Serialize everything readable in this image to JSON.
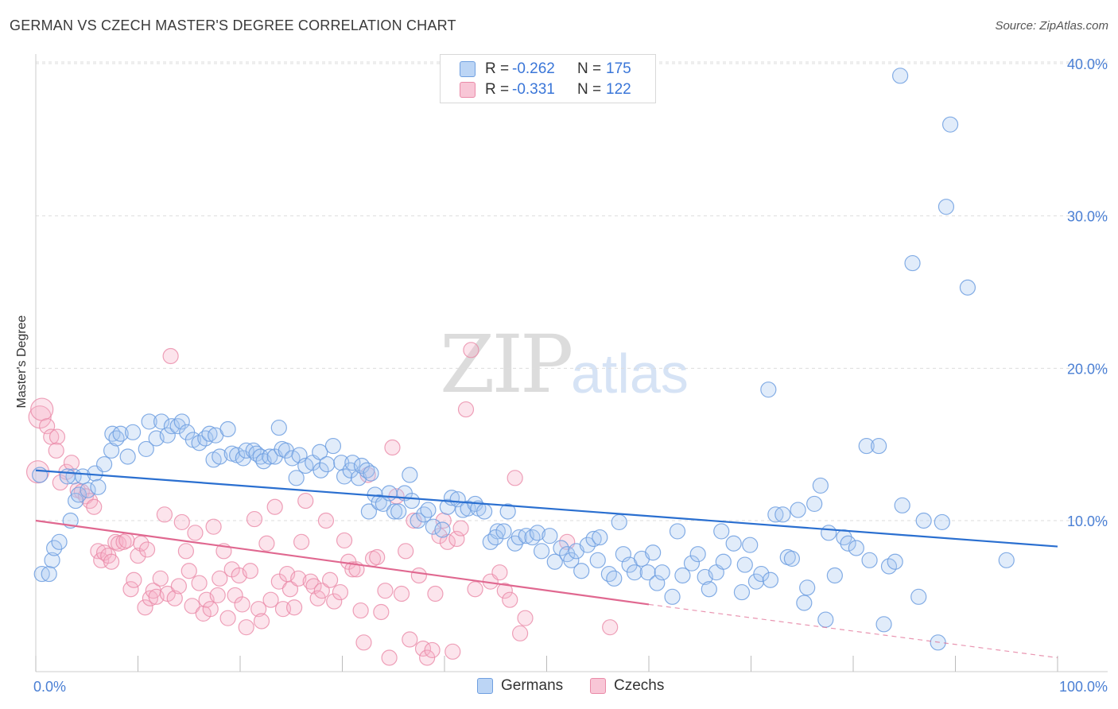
{
  "header": {
    "title": "GERMAN VS CZECH MASTER'S DEGREE CORRELATION CHART",
    "source": "Source: ZipAtlas.com"
  },
  "watermark": {
    "zip": "ZIP",
    "atlas": "atlas"
  },
  "legend": {
    "rows": [
      {
        "r_label": "R =",
        "r_value": "-0.262",
        "n_label": "N =",
        "n_value": "175"
      },
      {
        "r_label": "R =",
        "r_value": "-0.331",
        "n_label": "N =",
        "n_value": "122"
      }
    ]
  },
  "bottom_legend": {
    "germans": "Germans",
    "czechs": "Czechs"
  },
  "colors": {
    "germans_fill": "#a9c8f0",
    "germans_stroke": "#6f9fe0",
    "germans_line": "#2a6fd0",
    "czechs_fill": "#f5b3c8",
    "czechs_stroke": "#ea8aa8",
    "czechs_line": "#e06890",
    "tick_text": "#4a7fd4",
    "grid": "#dddddd"
  },
  "chart_data": {
    "type": "scatter",
    "title": "GERMAN VS CZECH MASTER'S DEGREE CORRELATION CHART",
    "xlabel": "",
    "ylabel": "Master's Degree",
    "xlim": [
      0,
      100
    ],
    "ylim": [
      0,
      42
    ],
    "x_tick_labels": [
      "0.0%",
      "100.0%"
    ],
    "y_ticks": [
      10,
      20,
      30,
      40
    ],
    "y_tick_labels": [
      "10.0%",
      "20.0%",
      "30.0%",
      "40.0%"
    ],
    "grid": true,
    "legend_position": "top-center",
    "series": [
      {
        "name": "Germans",
        "R": -0.262,
        "N": 175,
        "trend": {
          "x": [
            0,
            100
          ],
          "y": [
            13.3,
            8.3
          ],
          "style": "solid"
        },
        "points": [
          [
            0.6,
            6.5
          ],
          [
            1.3,
            6.5
          ],
          [
            1.6,
            7.4
          ],
          [
            1.8,
            8.2
          ],
          [
            2.3,
            8.6
          ],
          [
            3.4,
            10.0
          ],
          [
            3.7,
            12.9
          ],
          [
            3.9,
            11.3
          ],
          [
            4.2,
            11.7
          ],
          [
            5.1,
            12.0
          ],
          [
            4.6,
            12.9
          ],
          [
            5.8,
            13.1
          ],
          [
            6.1,
            12.2
          ],
          [
            6.7,
            13.7
          ],
          [
            7.4,
            14.6
          ],
          [
            7.5,
            15.7
          ],
          [
            7.9,
            15.4
          ],
          [
            8.3,
            15.7
          ],
          [
            9.0,
            14.2
          ],
          [
            9.5,
            15.8
          ],
          [
            10.8,
            14.7
          ],
          [
            11.1,
            16.5
          ],
          [
            11.8,
            15.4
          ],
          [
            12.3,
            16.5
          ],
          [
            12.9,
            15.6
          ],
          [
            13.3,
            16.2
          ],
          [
            13.9,
            16.2
          ],
          [
            14.3,
            16.5
          ],
          [
            14.8,
            15.8
          ],
          [
            15.4,
            15.3
          ],
          [
            16.0,
            15.1
          ],
          [
            16.6,
            15.4
          ],
          [
            17.0,
            15.7
          ],
          [
            17.6,
            15.6
          ],
          [
            17.4,
            14.0
          ],
          [
            18.0,
            14.2
          ],
          [
            18.8,
            16.0
          ],
          [
            19.2,
            14.4
          ],
          [
            19.7,
            14.3
          ],
          [
            20.3,
            14.1
          ],
          [
            20.6,
            14.6
          ],
          [
            21.3,
            14.6
          ],
          [
            21.6,
            14.4
          ],
          [
            22.0,
            14.2
          ],
          [
            22.3,
            13.9
          ],
          [
            22.9,
            14.2
          ],
          [
            23.4,
            14.2
          ],
          [
            23.8,
            16.1
          ],
          [
            24.1,
            14.7
          ],
          [
            24.5,
            14.6
          ],
          [
            25.1,
            14.1
          ],
          [
            25.8,
            14.3
          ],
          [
            25.5,
            12.8
          ],
          [
            26.4,
            13.6
          ],
          [
            27.1,
            13.8
          ],
          [
            27.8,
            14.5
          ],
          [
            27.9,
            13.3
          ],
          [
            28.5,
            13.7
          ],
          [
            29.1,
            14.9
          ],
          [
            29.9,
            13.8
          ],
          [
            30.2,
            12.9
          ],
          [
            30.8,
            13.3
          ],
          [
            31.0,
            13.8
          ],
          [
            31.6,
            12.8
          ],
          [
            31.9,
            13.6
          ],
          [
            32.4,
            13.3
          ],
          [
            32.8,
            13.1
          ],
          [
            32.6,
            10.6
          ],
          [
            33.2,
            11.7
          ],
          [
            33.6,
            11.2
          ],
          [
            34.0,
            11.1
          ],
          [
            34.6,
            11.8
          ],
          [
            35.1,
            10.6
          ],
          [
            35.5,
            10.6
          ],
          [
            36.1,
            11.8
          ],
          [
            36.6,
            13.0
          ],
          [
            36.8,
            11.3
          ],
          [
            37.4,
            10.0
          ],
          [
            38.0,
            10.4
          ],
          [
            38.4,
            10.7
          ],
          [
            38.9,
            9.6
          ],
          [
            39.8,
            9.4
          ],
          [
            40.3,
            10.9
          ],
          [
            40.7,
            11.5
          ],
          [
            41.3,
            11.4
          ],
          [
            41.8,
            10.7
          ],
          [
            42.3,
            10.8
          ],
          [
            43.0,
            11.1
          ],
          [
            43.3,
            10.8
          ],
          [
            43.9,
            10.6
          ],
          [
            44.5,
            8.6
          ],
          [
            45.2,
            9.3
          ],
          [
            45.0,
            8.9
          ],
          [
            45.8,
            9.3
          ],
          [
            46.2,
            10.6
          ],
          [
            46.9,
            8.5
          ],
          [
            47.3,
            8.9
          ],
          [
            48.0,
            9.0
          ],
          [
            48.6,
            8.9
          ],
          [
            49.1,
            9.2
          ],
          [
            49.5,
            8.0
          ],
          [
            50.3,
            9.0
          ],
          [
            50.8,
            7.3
          ],
          [
            51.4,
            8.2
          ],
          [
            52.0,
            7.8
          ],
          [
            52.4,
            7.4
          ],
          [
            52.9,
            8.0
          ],
          [
            53.4,
            6.7
          ],
          [
            54.0,
            8.4
          ],
          [
            54.6,
            8.8
          ],
          [
            55.2,
            8.9
          ],
          [
            55.0,
            7.4
          ],
          [
            56.1,
            6.5
          ],
          [
            56.6,
            6.2
          ],
          [
            57.1,
            9.9
          ],
          [
            57.5,
            7.8
          ],
          [
            58.1,
            7.1
          ],
          [
            58.6,
            6.6
          ],
          [
            59.3,
            7.5
          ],
          [
            59.9,
            6.6
          ],
          [
            60.4,
            7.9
          ],
          [
            60.8,
            5.9
          ],
          [
            61.3,
            6.6
          ],
          [
            62.3,
            5.0
          ],
          [
            62.8,
            9.3
          ],
          [
            63.3,
            6.4
          ],
          [
            64.2,
            7.2
          ],
          [
            64.8,
            7.8
          ],
          [
            65.5,
            6.3
          ],
          [
            65.9,
            5.5
          ],
          [
            66.6,
            6.6
          ],
          [
            67.1,
            9.3
          ],
          [
            67.3,
            7.3
          ],
          [
            68.3,
            8.5
          ],
          [
            69.1,
            5.3
          ],
          [
            69.4,
            7.1
          ],
          [
            69.9,
            8.4
          ],
          [
            70.5,
            6.0
          ],
          [
            71.0,
            6.5
          ],
          [
            71.7,
            18.6
          ],
          [
            71.9,
            6.1
          ],
          [
            72.4,
            10.4
          ],
          [
            73.1,
            10.4
          ],
          [
            73.6,
            7.6
          ],
          [
            74.0,
            7.5
          ],
          [
            74.6,
            10.7
          ],
          [
            75.2,
            4.6
          ],
          [
            75.5,
            5.6
          ],
          [
            76.2,
            11.1
          ],
          [
            76.8,
            12.3
          ],
          [
            77.3,
            3.5
          ],
          [
            77.6,
            9.2
          ],
          [
            78.2,
            6.4
          ],
          [
            79.1,
            8.9
          ],
          [
            79.5,
            8.5
          ],
          [
            80.3,
            8.2
          ],
          [
            81.3,
            14.9
          ],
          [
            81.6,
            7.4
          ],
          [
            82.5,
            14.9
          ],
          [
            83.0,
            3.2
          ],
          [
            83.5,
            7.0
          ],
          [
            84.1,
            7.3
          ],
          [
            84.8,
            11.0
          ],
          [
            85.8,
            26.9
          ],
          [
            86.4,
            5.0
          ],
          [
            86.9,
            10.0
          ],
          [
            88.3,
            2.0
          ],
          [
            88.7,
            9.9
          ],
          [
            89.1,
            30.6
          ],
          [
            89.5,
            36.0
          ],
          [
            91.2,
            25.3
          ],
          [
            95.0,
            7.4
          ],
          [
            84.6,
            39.2
          ],
          [
            0.4,
            13.0
          ],
          [
            3.1,
            12.9
          ]
        ]
      },
      {
        "name": "Czechs",
        "R": -0.331,
        "N": 122,
        "trend": {
          "x": [
            0,
            60
          ],
          "y": [
            10.0,
            4.5
          ],
          "dashed_to": [
            100,
            1.0
          ]
        },
        "points": [
          [
            0.2,
            13.2
          ],
          [
            0.4,
            16.8
          ],
          [
            0.6,
            17.3
          ],
          [
            1.1,
            16.2
          ],
          [
            1.5,
            15.5
          ],
          [
            2.1,
            15.5
          ],
          [
            2.0,
            14.6
          ],
          [
            2.4,
            12.5
          ],
          [
            3.0,
            13.2
          ],
          [
            3.5,
            13.8
          ],
          [
            4.1,
            12.0
          ],
          [
            4.5,
            11.9
          ],
          [
            4.9,
            11.6
          ],
          [
            5.3,
            11.3
          ],
          [
            5.7,
            10.9
          ],
          [
            6.1,
            8.0
          ],
          [
            6.4,
            7.4
          ],
          [
            6.7,
            7.9
          ],
          [
            7.1,
            7.7
          ],
          [
            7.4,
            7.3
          ],
          [
            7.8,
            8.6
          ],
          [
            8.1,
            8.5
          ],
          [
            8.6,
            8.6
          ],
          [
            8.9,
            8.7
          ],
          [
            9.3,
            5.5
          ],
          [
            9.6,
            6.1
          ],
          [
            10.0,
            7.7
          ],
          [
            10.3,
            8.5
          ],
          [
            10.7,
            4.3
          ],
          [
            10.9,
            8.1
          ],
          [
            11.2,
            4.9
          ],
          [
            11.5,
            5.4
          ],
          [
            11.8,
            5.0
          ],
          [
            12.2,
            6.2
          ],
          [
            12.6,
            10.4
          ],
          [
            12.9,
            5.2
          ],
          [
            13.2,
            20.8
          ],
          [
            13.6,
            4.9
          ],
          [
            14.0,
            5.7
          ],
          [
            14.3,
            9.9
          ],
          [
            14.7,
            8.0
          ],
          [
            15.0,
            6.7
          ],
          [
            15.3,
            4.4
          ],
          [
            15.6,
            9.2
          ],
          [
            16.0,
            5.9
          ],
          [
            16.4,
            3.9
          ],
          [
            16.7,
            4.8
          ],
          [
            17.1,
            4.2
          ],
          [
            17.4,
            9.6
          ],
          [
            17.8,
            5.1
          ],
          [
            18.0,
            6.2
          ],
          [
            18.4,
            8.0
          ],
          [
            18.8,
            3.6
          ],
          [
            19.2,
            6.8
          ],
          [
            19.5,
            5.1
          ],
          [
            19.9,
            6.4
          ],
          [
            20.2,
            4.5
          ],
          [
            20.6,
            3.0
          ],
          [
            21.0,
            6.7
          ],
          [
            21.4,
            10.1
          ],
          [
            21.8,
            4.2
          ],
          [
            22.1,
            3.4
          ],
          [
            22.6,
            8.5
          ],
          [
            23.0,
            4.8
          ],
          [
            23.4,
            10.9
          ],
          [
            23.8,
            6.0
          ],
          [
            24.2,
            4.2
          ],
          [
            24.6,
            6.5
          ],
          [
            24.9,
            5.5
          ],
          [
            25.3,
            4.3
          ],
          [
            25.7,
            6.2
          ],
          [
            26.0,
            8.6
          ],
          [
            26.4,
            11.3
          ],
          [
            26.9,
            6.0
          ],
          [
            27.2,
            5.7
          ],
          [
            27.6,
            4.9
          ],
          [
            28.0,
            5.4
          ],
          [
            28.4,
            10.0
          ],
          [
            28.8,
            6.1
          ],
          [
            29.2,
            4.7
          ],
          [
            29.8,
            5.3
          ],
          [
            30.2,
            8.7
          ],
          [
            30.6,
            7.3
          ],
          [
            31.0,
            6.8
          ],
          [
            31.4,
            6.8
          ],
          [
            31.8,
            4.1
          ],
          [
            32.1,
            2.0
          ],
          [
            32.5,
            13.0
          ],
          [
            33.0,
            7.5
          ],
          [
            33.4,
            7.6
          ],
          [
            33.8,
            4.0
          ],
          [
            34.2,
            5.4
          ],
          [
            34.6,
            1.0
          ],
          [
            34.9,
            14.8
          ],
          [
            35.3,
            11.6
          ],
          [
            35.8,
            5.2
          ],
          [
            36.2,
            8.0
          ],
          [
            36.6,
            2.2
          ],
          [
            37.0,
            10.0
          ],
          [
            37.5,
            6.4
          ],
          [
            37.9,
            1.6
          ],
          [
            38.3,
            1.0
          ],
          [
            38.8,
            1.5
          ],
          [
            39.1,
            5.2
          ],
          [
            39.5,
            9.0
          ],
          [
            39.9,
            10.0
          ],
          [
            40.3,
            8.6
          ],
          [
            40.8,
            1.4
          ],
          [
            41.2,
            8.8
          ],
          [
            41.6,
            9.5
          ],
          [
            42.1,
            17.3
          ],
          [
            42.6,
            21.2
          ],
          [
            43.0,
            5.5
          ],
          [
            44.5,
            6.0
          ],
          [
            45.4,
            6.6
          ],
          [
            45.9,
            5.4
          ],
          [
            46.4,
            4.8
          ],
          [
            46.9,
            12.8
          ],
          [
            47.4,
            2.6
          ],
          [
            47.9,
            3.6
          ],
          [
            52.0,
            8.6
          ],
          [
            56.2,
            3.0
          ]
        ]
      }
    ]
  }
}
